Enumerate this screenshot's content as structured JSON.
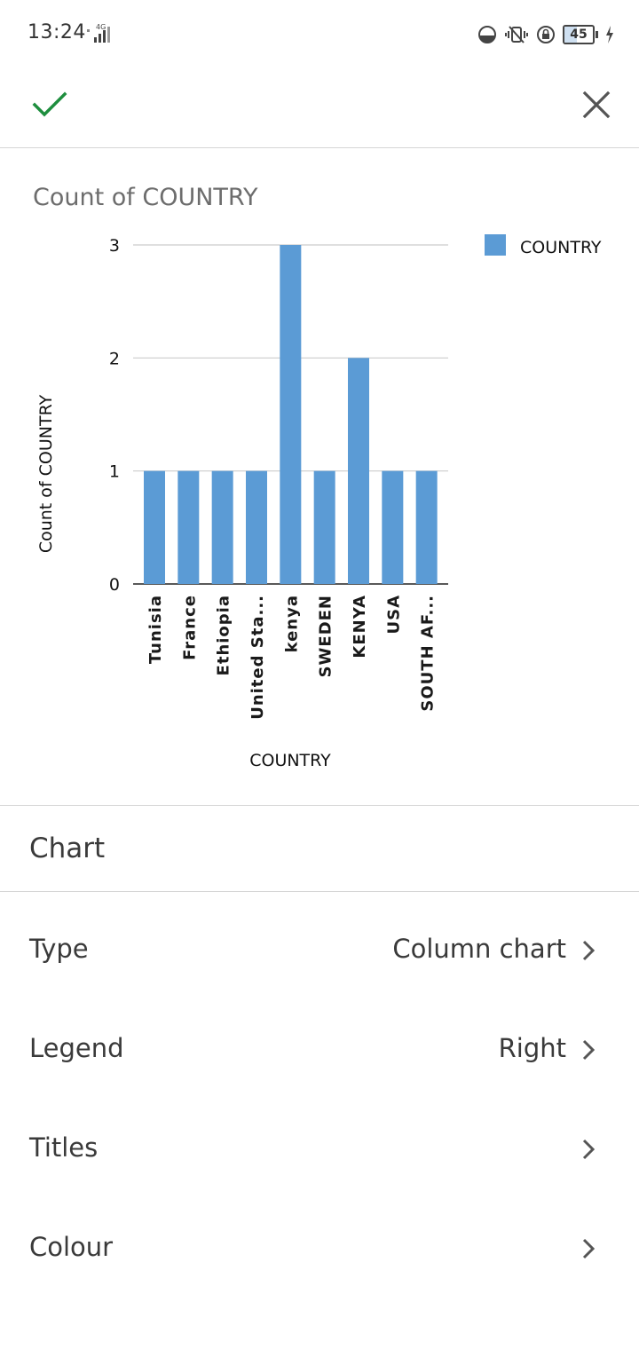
{
  "status_bar": {
    "time": "13:24",
    "network": "4G",
    "battery": "45"
  },
  "header": {
    "confirm_icon": "check-icon",
    "close_icon": "close-icon",
    "accent_color": "#1e8e3e"
  },
  "chart_data": {
    "type": "bar",
    "title": "Count of COUNTRY",
    "xlabel": "COUNTRY",
    "ylabel": "Count of COUNTRY",
    "categories": [
      "Tunisia",
      "France",
      "Ethiopia",
      "United Sta...",
      "kenya",
      "SWEDEN",
      "KENYA",
      "USA",
      "SOUTH AF..."
    ],
    "series": [
      {
        "name": "COUNTRY",
        "values": [
          1,
          1,
          1,
          1,
          3,
          1,
          2,
          1,
          1
        ],
        "color": "#5b9bd5"
      }
    ],
    "yticks": [
      "0",
      "1",
      "2",
      "3"
    ],
    "ylim": [
      0,
      3
    ],
    "grid": true,
    "legend_position": "right"
  },
  "settings": {
    "section_title": "Chart",
    "rows": [
      {
        "label": "Type",
        "value": "Column chart"
      },
      {
        "label": "Legend",
        "value": "Right"
      },
      {
        "label": "Titles",
        "value": ""
      },
      {
        "label": "Colour",
        "value": ""
      }
    ]
  }
}
